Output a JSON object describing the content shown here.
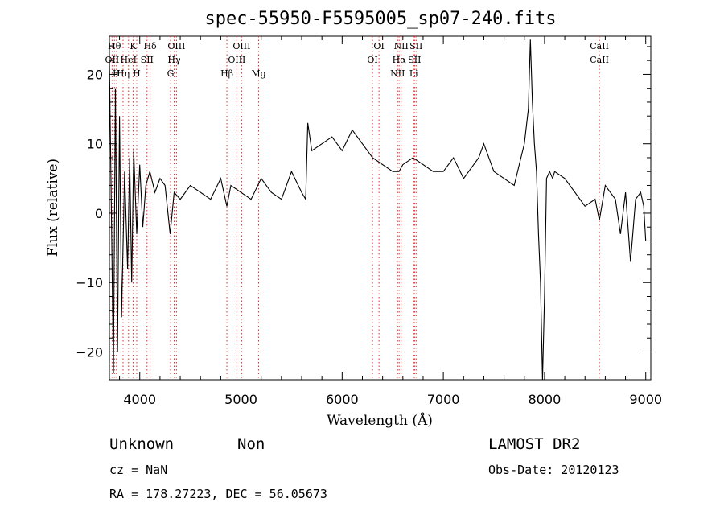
{
  "chart_data": {
    "type": "line",
    "title": "spec-55950-F5595005_sp07-240.fits",
    "xlabel": "Wavelength (Å)",
    "ylabel": "Flux (relative)",
    "xlim": [
      3700,
      9050
    ],
    "ylim": [
      -24,
      25.5
    ],
    "x_ticks": [
      4000,
      5000,
      6000,
      7000,
      8000,
      9000
    ],
    "y_ticks": [
      -20,
      -10,
      0,
      10,
      20
    ],
    "grid": false,
    "series": [
      {
        "x": [
          3700,
          3720,
          3740,
          3760,
          3780,
          3800,
          3820,
          3850,
          3880,
          3900,
          3920,
          3940,
          3970,
          4000,
          4030,
          4060,
          4100,
          4150,
          4200,
          4250,
          4300,
          4340,
          4400,
          4500,
          4600,
          4700,
          4800,
          4861,
          4900,
          5000,
          5100,
          5200,
          5300,
          5400,
          5500,
          5600,
          5640,
          5660,
          5700,
          5800,
          5900,
          6000,
          6100,
          6200,
          6300,
          6400,
          6500,
          6563,
          6600,
          6700,
          6800,
          6900,
          7000,
          7100,
          7200,
          7300,
          7350,
          7400,
          7500,
          7600,
          7700,
          7800,
          7840,
          7860,
          7880,
          7900,
          7920,
          7940,
          7960,
          7980,
          8000,
          8020,
          8050,
          8080,
          8100,
          8200,
          8300,
          8400,
          8500,
          8542,
          8600,
          8700,
          8750,
          8800,
          8850,
          8900,
          8950,
          8980,
          9000
        ],
        "y": [
          22,
          0,
          -23,
          18,
          -20,
          14,
          -15,
          6,
          -8,
          8,
          -10,
          9,
          -3,
          7,
          -2,
          4,
          6,
          3,
          5,
          4,
          -3,
          3,
          2,
          4,
          3,
          2,
          5,
          1,
          4,
          3,
          2,
          5,
          3,
          2,
          6,
          3,
          2,
          13,
          9,
          10,
          11,
          9,
          12,
          10,
          8,
          7,
          6,
          6,
          7,
          8,
          7,
          6,
          6,
          8,
          5,
          7,
          8,
          10,
          6,
          5,
          4,
          10,
          15,
          25,
          16,
          10,
          6,
          -3,
          -10,
          -24,
          -12,
          5,
          6,
          5,
          6,
          5,
          3,
          1,
          2,
          -1,
          4,
          2,
          -3,
          3,
          -7,
          2,
          3,
          1,
          -4
        ]
      }
    ],
    "line_markers": [
      {
        "wavelength": 3727,
        "label": "OII",
        "row": 2
      },
      {
        "wavelength": 3750,
        "label": "Hθ",
        "row": 1
      },
      {
        "wavelength": 3770,
        "label": "H",
        "row": 3
      },
      {
        "wavelength": 3835,
        "label": "Hη",
        "row": 3
      },
      {
        "wavelength": 3889,
        "label": "HeI",
        "row": 2
      },
      {
        "wavelength": 3934,
        "label": "K",
        "row": 1
      },
      {
        "wavelength": 3970,
        "label": "H",
        "row": 3
      },
      {
        "wavelength": 4072,
        "label": "SII",
        "row": 2
      },
      {
        "wavelength": 4102,
        "label": "Hδ",
        "row": 1
      },
      {
        "wavelength": 4304,
        "label": "G",
        "row": 3
      },
      {
        "wavelength": 4340,
        "label": "Hγ",
        "row": 2
      },
      {
        "wavelength": 4363,
        "label": "OIII",
        "row": 1
      },
      {
        "wavelength": 4861,
        "label": "Hβ",
        "row": 3
      },
      {
        "wavelength": 4959,
        "label": "OIII",
        "row": 2
      },
      {
        "wavelength": 5007,
        "label": "OIII",
        "row": 1
      },
      {
        "wavelength": 5175,
        "label": "Mg",
        "row": 3
      },
      {
        "wavelength": 6300,
        "label": "OI",
        "row": 2
      },
      {
        "wavelength": 6364,
        "label": "OI",
        "row": 1
      },
      {
        "wavelength": 6548,
        "label": "NII",
        "row": 3
      },
      {
        "wavelength": 6563,
        "label": "Hα",
        "row": 2
      },
      {
        "wavelength": 6583,
        "label": "NII",
        "row": 1
      },
      {
        "wavelength": 6707,
        "label": "Li",
        "row": 3
      },
      {
        "wavelength": 6716,
        "label": "SII",
        "row": 2
      },
      {
        "wavelength": 6731,
        "label": "SII",
        "row": 1
      },
      {
        "wavelength": 8542,
        "label": "CaII",
        "row": 1
      },
      {
        "wavelength": 8542,
        "label": "CaII",
        "row": 2
      }
    ]
  },
  "info": {
    "class_label": "Unknown",
    "subclass_label": "Non",
    "survey": "LAMOST DR2",
    "cz": "cz = NaN",
    "obs_date": "Obs-Date: 20120123",
    "coords": "RA = 178.27223, DEC =  56.05673"
  }
}
